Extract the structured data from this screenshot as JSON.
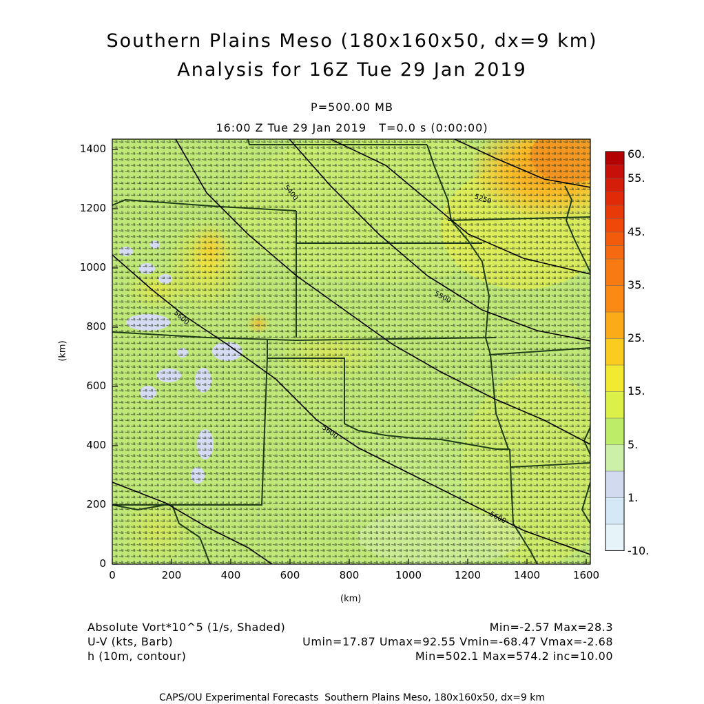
{
  "header": {
    "title_line1": "Southern Plains Meso (180x160x50, dx=9 km)",
    "title_line2": "Analysis for 16Z Tue 29 Jan 2019",
    "level": "P=500.00 MB",
    "time": "16:00 Z Tue 29 Jan 2019   T=0.0 s (0:00:00)"
  },
  "axes": {
    "x_unit": "(km)",
    "y_unit": "(km)",
    "x_ticks": [
      "0",
      "200",
      "400",
      "600",
      "800",
      "1000",
      "1200",
      "1400",
      "1600"
    ],
    "y_ticks": [
      "0",
      "200",
      "400",
      "600",
      "800",
      "1000",
      "1200",
      "1400"
    ],
    "x_range": [
      0,
      1611
    ],
    "y_range": [
      0,
      1431
    ]
  },
  "colorbar": {
    "labels": [
      "60.",
      "55.",
      "45.",
      "35.",
      "25.",
      "15.",
      "5.",
      "1.",
      "-10."
    ],
    "colors": [
      "#b30000",
      "#c8100a",
      "#e02a08",
      "#f04808",
      "#f56a10",
      "#fb8a14",
      "#fbaa18",
      "#fbcc20",
      "#f2ea30",
      "#dcf04a",
      "#bdec68",
      "#cdf0a8",
      "#d2daf0",
      "#d4e8f6",
      "#e6f4fa"
    ]
  },
  "contours": {
    "labels": [
      "5400",
      "5250",
      "5500",
      "5600",
      "5600",
      "5600"
    ]
  },
  "info": {
    "field1_name": "Absolute Vort*10^5 (1/s, Shaded)",
    "field1_stats": "Min=-2.57 Max=28.3",
    "field2_name": "U-V (kts, Barb)",
    "field2_stats": "Umin=17.87 Umax=92.55 Vmin=-68.47 Vmax=-2.68",
    "field3_name": "h (10m, contour)",
    "field3_stats": "Min=502.1 Max=574.2 inc=10.00"
  },
  "footer": {
    "text": "CAPS/OU Experimental Forecasts  Southern Plains Meso, 180x160x50, dx=9 km"
  }
}
